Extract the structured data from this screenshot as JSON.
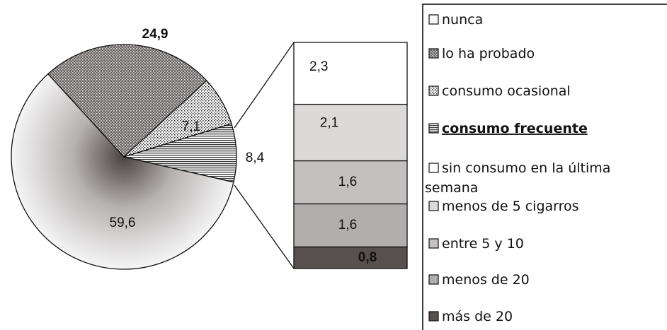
{
  "chart_data": {
    "type": "pie",
    "pie": {
      "slices": [
        {
          "label": "nunca",
          "value": 59.6,
          "fill": "grad-nunca"
        },
        {
          "label": "lo ha probado",
          "value": 24.9,
          "fill": "pat-dark-dots"
        },
        {
          "label": "consumo ocasional",
          "value": 7.1,
          "fill": "pat-light-dots"
        },
        {
          "label": "consumo frecuente",
          "value": 8.4,
          "fill": "pat-hstripes"
        }
      ],
      "data_labels": [
        "59,6",
        "24,9",
        "7,1",
        "8,4"
      ]
    },
    "bar_of_pie": {
      "segments": [
        {
          "label": "sin consumo en la última semana",
          "value": 2.3,
          "display": "2,3",
          "color": "#ffffff"
        },
        {
          "label": "menos de 5 cigarros",
          "value": 2.1,
          "display": "2,1",
          "color": "#dcd9d9"
        },
        {
          "label": "entre 5 y 10",
          "value": 1.6,
          "display": "1,6",
          "color": "#c4c0c0"
        },
        {
          "label": "menos de 20",
          "value": 1.6,
          "display": "1,6",
          "color": "#b2aeae"
        },
        {
          "label": "más de 20",
          "value": 0.8,
          "display": "0,8",
          "color": "#57504f"
        }
      ]
    },
    "legend": {
      "position": "right",
      "entries": [
        {
          "text": "nunca",
          "swatch": "grad-nunca"
        },
        {
          "text": "lo ha probado",
          "swatch": "pat-dark-dots"
        },
        {
          "text": "consumo ocasional",
          "swatch": "pat-light-dots"
        },
        {
          "text": "consumo frecuente",
          "swatch": "pat-hstripes",
          "emphasis": true
        },
        {
          "text_lines": [
            "sin consumo en la última",
            "semana"
          ],
          "swatch": "#ffffff"
        },
        {
          "text": "menos de 5 cigarros",
          "swatch": "#dcd9d9"
        },
        {
          "text": "entre 5 y 10",
          "swatch": "#c4c0c0"
        },
        {
          "text": "menos de 20",
          "swatch": "#b2aeae"
        },
        {
          "text": "más de 20",
          "swatch": "#57504f"
        }
      ]
    }
  }
}
